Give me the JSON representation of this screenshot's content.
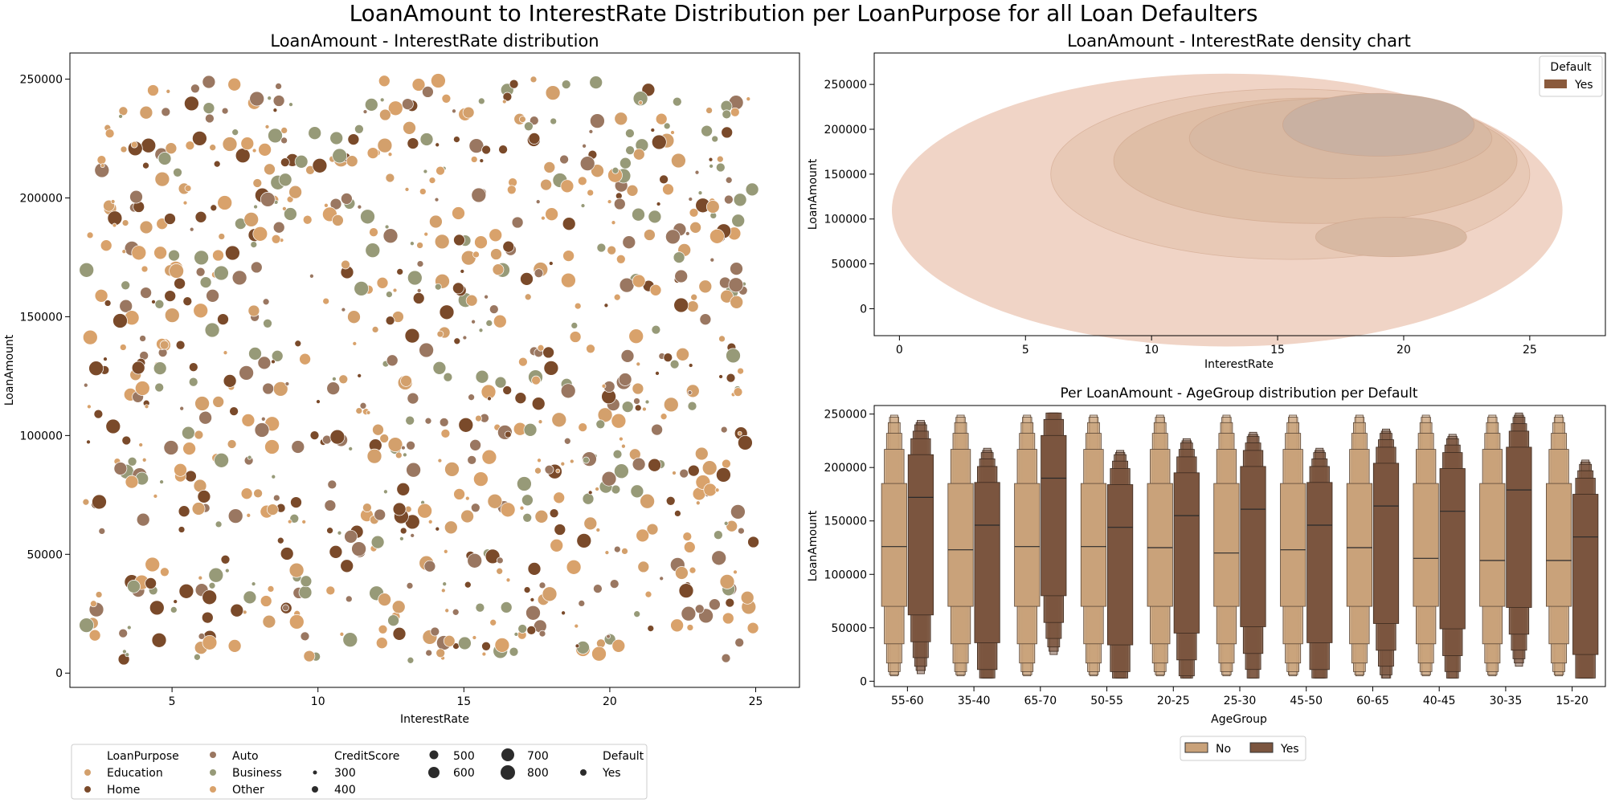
{
  "figure": {
    "suptitle": "LoanAmount to InterestRate Distribution per LoanPurpose for all Loan Defaulters"
  },
  "colors": {
    "education": "#d3a06c",
    "home": "#7a4a2a",
    "auto": "#9a7761",
    "business": "#979a78",
    "other": "#d9a26b",
    "kde_base": "#f0d4c6",
    "box_no": "#c9a27a",
    "box_yes": "#7b553f"
  },
  "chart_data": [
    {
      "type": "scatter",
      "title": "LoanAmount - InterestRate distribution",
      "xlabel": "InterestRate",
      "ylabel": "LoanAmount",
      "xlim": [
        1.5,
        26.5
      ],
      "ylim": [
        -6000,
        261000
      ],
      "xticks": [
        5,
        10,
        15,
        20,
        25
      ],
      "yticks": [
        0,
        50000,
        100000,
        150000,
        200000,
        250000
      ],
      "n_points": 900,
      "x_range": [
        2,
        25
      ],
      "y_range": [
        5000,
        250000
      ],
      "size_var": "CreditScore",
      "grid": false,
      "legend": {
        "placement": "below",
        "hue_title": "LoanPurpose",
        "hue_items": [
          "Education",
          "Home",
          "Auto",
          "Business",
          "Other"
        ],
        "size_title": "CreditScore",
        "size_items": [
          "300",
          "400",
          "500",
          "600",
          "700",
          "800"
        ],
        "style_title": "Default",
        "style_items": [
          "Yes"
        ]
      }
    },
    {
      "type": "kde",
      "title": "LoanAmount - InterestRate density chart",
      "xlabel": "InterestRate",
      "ylabel": "LoanAmount",
      "xlim": [
        -1,
        28
      ],
      "ylim": [
        -30000,
        285000
      ],
      "xticks": [
        0,
        5,
        10,
        15,
        20,
        25
      ],
      "yticks": [
        0,
        50000,
        100000,
        150000,
        200000,
        250000
      ],
      "legend": {
        "title": "Default",
        "items": [
          "Yes"
        ],
        "placement": "upper right"
      }
    },
    {
      "type": "boxen",
      "title": "Per LoanAmount - AgeGroup distribution per Default",
      "xlabel": "AgeGroup",
      "ylabel": "LoanAmount",
      "ylim": [
        -5000,
        258000
      ],
      "yticks": [
        0,
        50000,
        100000,
        150000,
        200000,
        250000
      ],
      "categories": [
        "55-60",
        "35-40",
        "65-70",
        "50-55",
        "20-25",
        "25-30",
        "45-50",
        "60-65",
        "40-45",
        "30-35",
        "15-20"
      ],
      "series": [
        {
          "name": "No",
          "median": [
            126000,
            123000,
            126000,
            126000,
            125000,
            120000,
            123000,
            125000,
            115000,
            113000,
            113000
          ]
        },
        {
          "name": "Yes",
          "median": [
            172000,
            146000,
            190000,
            144000,
            155000,
            161000,
            146000,
            164000,
            159000,
            179000,
            135000
          ]
        }
      ],
      "legend": {
        "items": [
          "No",
          "Yes"
        ],
        "placement": "below"
      }
    }
  ]
}
